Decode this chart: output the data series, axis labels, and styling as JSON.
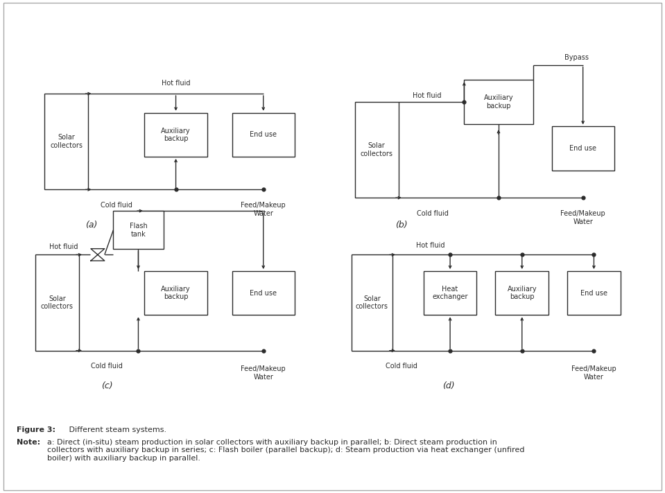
{
  "bg_color": "#ffffff",
  "line_color": "#2b2b2b",
  "font_size_box": 7,
  "font_size_label": 7,
  "font_size_caption": 8,
  "lw": 1.0,
  "dot_size": 3.5,
  "arrow_size": 6,
  "panels": [
    "(a)",
    "(b)",
    "(c)",
    "(d)"
  ]
}
